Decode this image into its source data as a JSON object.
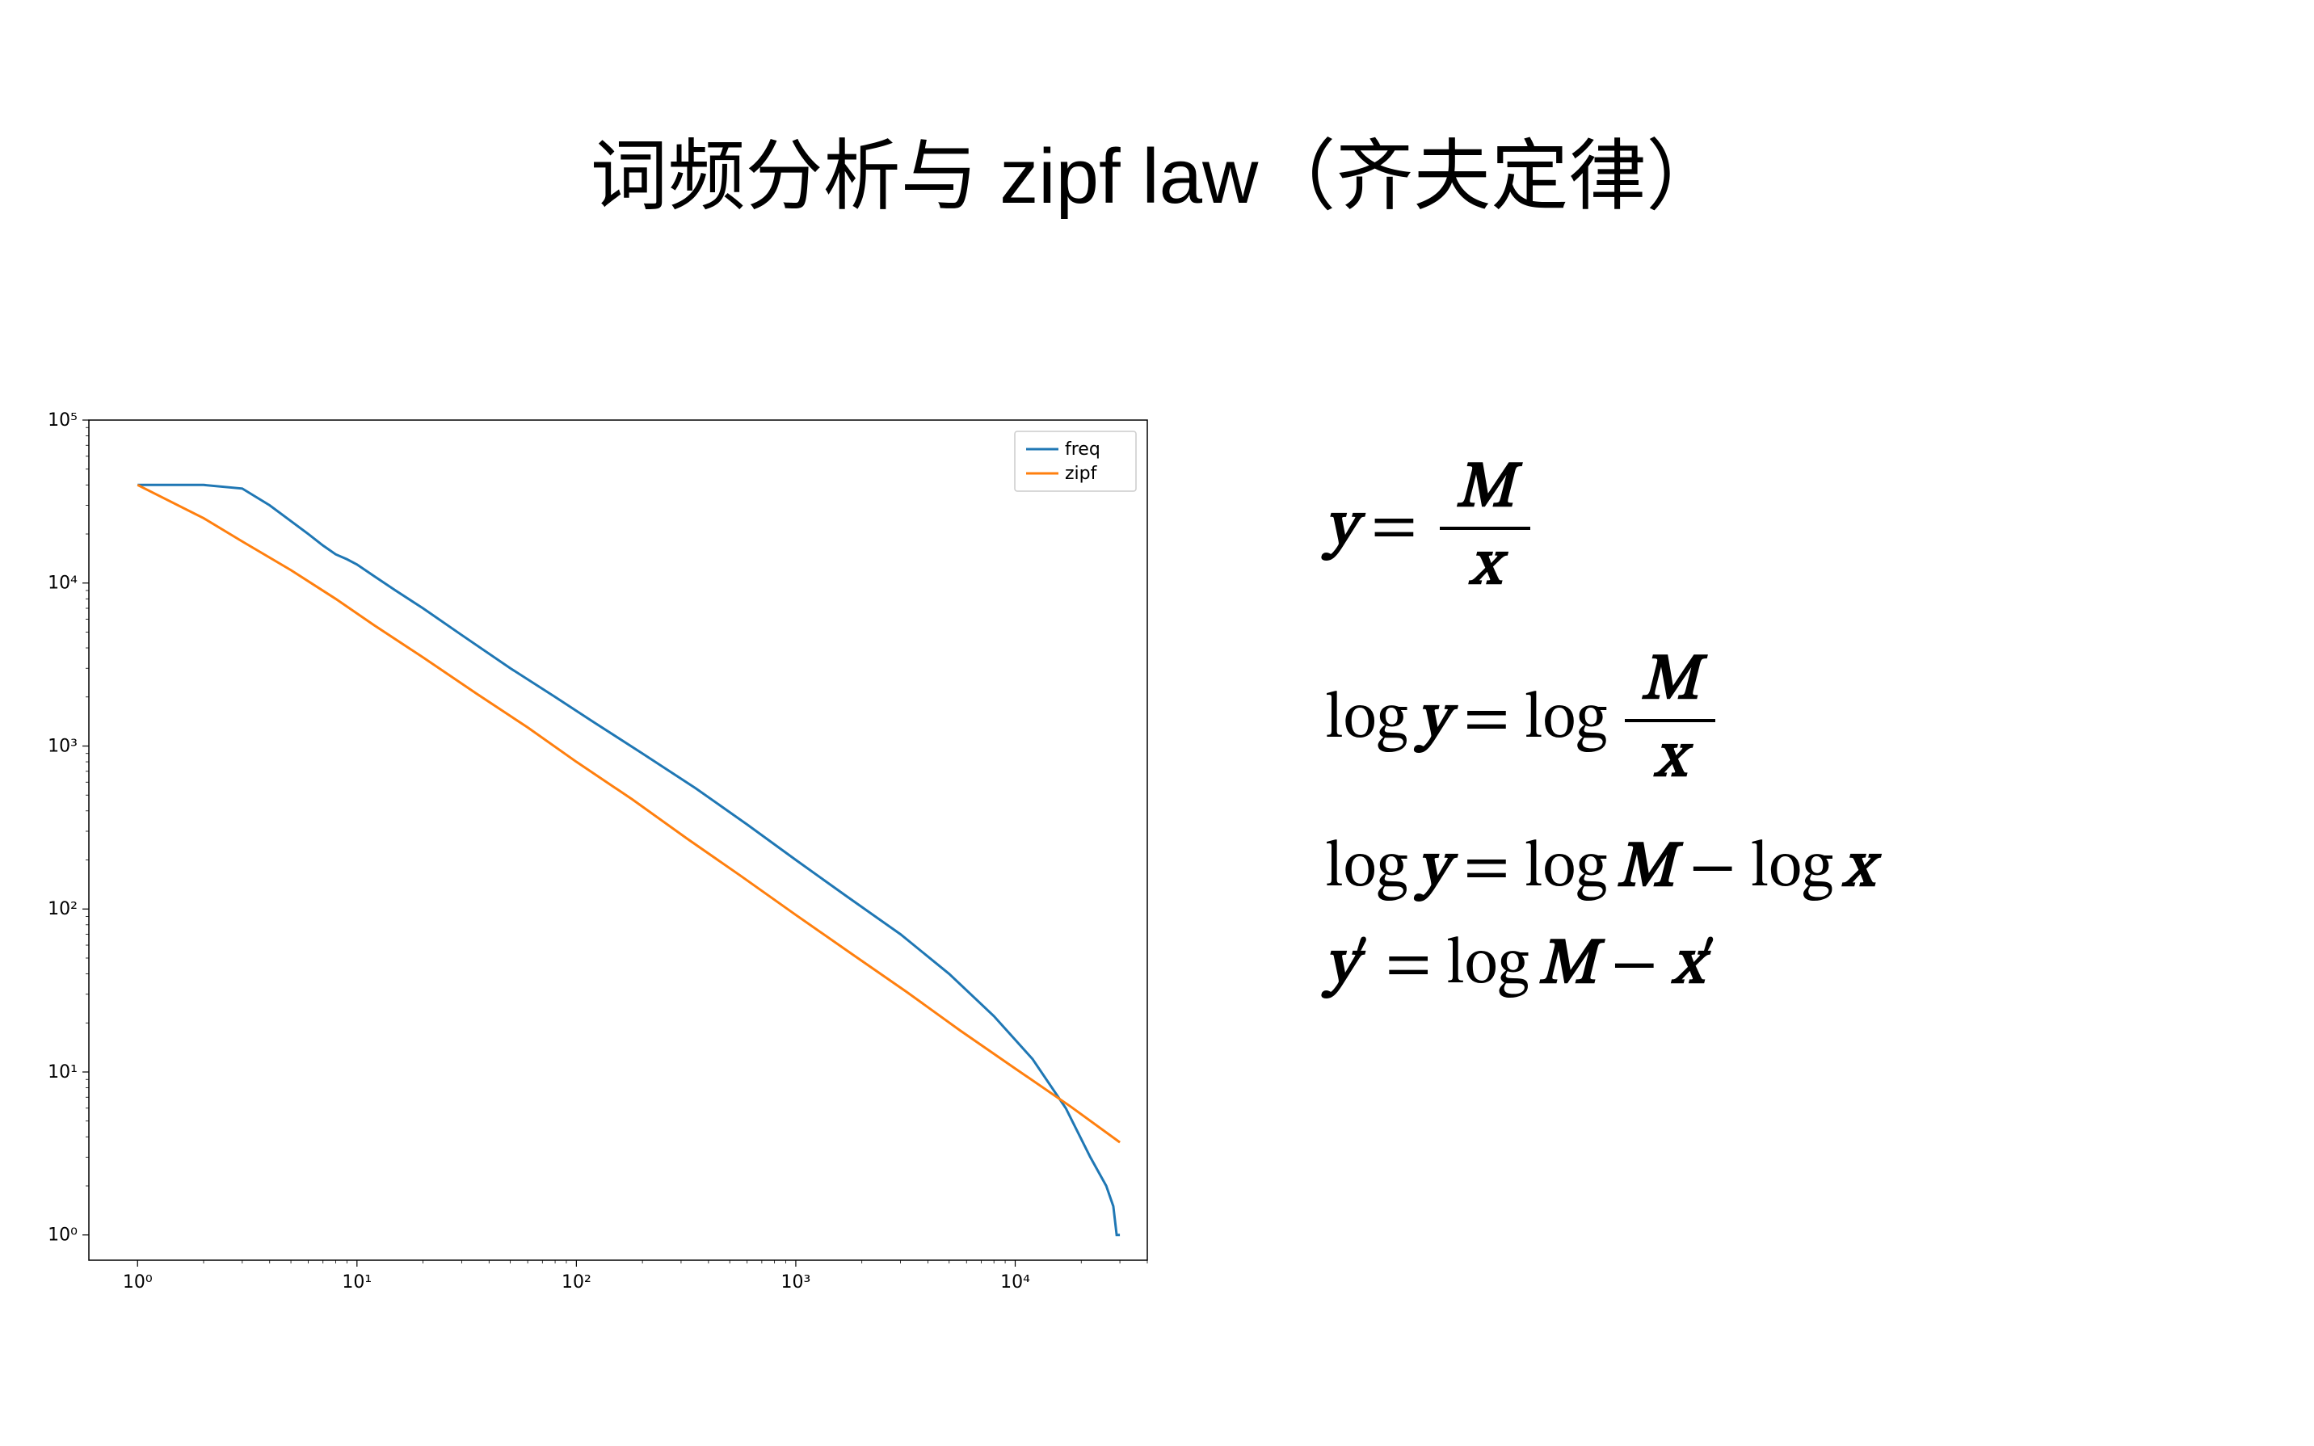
{
  "title": "词频分析与 zipf law（齐夫定律）",
  "chart": {
    "type": "line",
    "xscale": "log",
    "yscale": "log",
    "xlim": [
      0.6,
      40000
    ],
    "ylim": [
      0.7,
      100000
    ],
    "x_ticks": [
      1,
      10,
      100,
      1000,
      10000
    ],
    "x_tick_labels": [
      "10⁰",
      "10¹",
      "10²",
      "10³",
      "10⁴"
    ],
    "y_ticks": [
      1,
      10,
      100,
      1000,
      10000,
      100000
    ],
    "y_tick_labels": [
      "10⁰",
      "10¹",
      "10²",
      "10³",
      "10⁴",
      "10⁵"
    ],
    "background_color": "#ffffff",
    "spine_color": "#000000",
    "tick_color": "#000000",
    "tick_fontsize": 22,
    "line_width": 3,
    "series": [
      {
        "name": "freq",
        "color": "#1f77b4",
        "x": [
          1,
          2,
          3,
          4,
          5,
          6,
          7,
          8,
          9,
          10,
          12,
          15,
          20,
          30,
          50,
          80,
          120,
          200,
          350,
          600,
          1000,
          1700,
          3000,
          5000,
          8000,
          12000,
          17000,
          22000,
          26000,
          28000,
          29000,
          30000
        ],
        "y": [
          40000,
          40000,
          38000,
          30000,
          24000,
          20000,
          17000,
          15000,
          14000,
          13000,
          11000,
          9000,
          7000,
          4800,
          3000,
          2000,
          1400,
          900,
          550,
          330,
          200,
          120,
          70,
          40,
          22,
          12,
          6,
          3,
          2,
          1.5,
          1,
          1
        ]
      },
      {
        "name": "zipf",
        "color": "#ff7f0e",
        "x": [
          1,
          2,
          3,
          5,
          8,
          12,
          20,
          35,
          60,
          100,
          180,
          320,
          560,
          1000,
          1800,
          3200,
          5600,
          10000,
          18000,
          30000
        ],
        "y": [
          40000,
          25000,
          18000,
          12000,
          8000,
          5500,
          3500,
          2100,
          1300,
          800,
          470,
          270,
          160,
          92,
          53,
          31,
          18,
          10.5,
          6.1,
          3.7
        ]
      }
    ],
    "legend": {
      "position": "upper right",
      "frame_color": "#cccccc",
      "background": "#ffffff",
      "fontsize": 22,
      "items": [
        "freq",
        "zipf"
      ]
    }
  },
  "formulas": {
    "eq1_lhs_var": "y",
    "eq1_frac_num": "M",
    "eq1_frac_den": "x",
    "eq2_lhs_func": "log",
    "eq2_lhs_var": "y",
    "eq2_rhs_func": "log",
    "eq2_frac_num": "M",
    "eq2_frac_den": "x",
    "eq3_lhs_func": "log",
    "eq3_lhs_var": "y",
    "eq3_rhs_func1": "log",
    "eq3_rhs_var1": "M",
    "eq3_rhs_func2": "log",
    "eq3_rhs_var2": "x",
    "eq4_lhs_var": "y",
    "eq4_lhs_prime": "′",
    "eq4_rhs_func": "log",
    "eq4_rhs_var1": "M",
    "eq4_rhs_var2": "x",
    "eq4_rhs_prime": "′",
    "equals": "=",
    "minus": "−"
  }
}
